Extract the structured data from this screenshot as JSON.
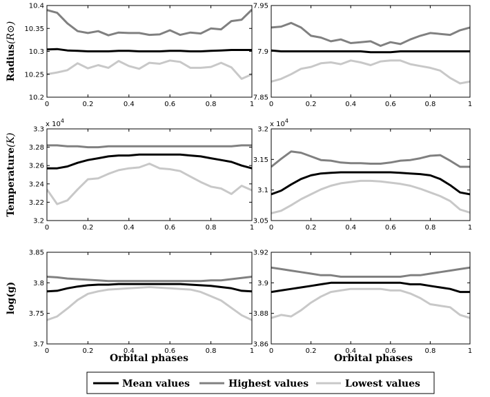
{
  "figure": {
    "xlabel": "Orbital phases",
    "legend": [
      {
        "key": "mean",
        "label": "Mean values",
        "color": "#000000"
      },
      {
        "key": "high",
        "label": "Highest values",
        "color": "#808080"
      },
      {
        "key": "low",
        "label": "Lowest values",
        "color": "#c8c8c8"
      }
    ]
  },
  "chart_data": [
    {
      "type": "line",
      "ylabel_main": "Radius",
      "ylabel_unit": "(R⊙)",
      "xlim": [
        0,
        1
      ],
      "ylim": [
        10.2,
        10.4
      ],
      "xticks": [
        "0",
        "0.2",
        "0.4",
        "0.6",
        "0.8",
        "1"
      ],
      "yticks": [
        "10.2",
        "10.25",
        "10.3",
        "10.35",
        "10.4"
      ],
      "x": [
        0,
        0.05,
        0.1,
        0.15,
        0.2,
        0.25,
        0.3,
        0.35,
        0.4,
        0.45,
        0.5,
        0.55,
        0.6,
        0.65,
        0.7,
        0.75,
        0.8,
        0.85,
        0.9,
        0.95,
        1
      ],
      "series": [
        {
          "name": "Mean values",
          "values": [
            10.304,
            10.305,
            10.302,
            10.301,
            10.3,
            10.3,
            10.3,
            10.301,
            10.301,
            10.3,
            10.3,
            10.3,
            10.301,
            10.301,
            10.3,
            10.3,
            10.301,
            10.302,
            10.303,
            10.303,
            10.303
          ]
        },
        {
          "name": "Highest values",
          "values": [
            10.39,
            10.384,
            10.361,
            10.344,
            10.34,
            10.344,
            10.335,
            10.341,
            10.34,
            10.34,
            10.336,
            10.337,
            10.346,
            10.336,
            10.341,
            10.339,
            10.35,
            10.348,
            10.366,
            10.369,
            10.391
          ]
        },
        {
          "name": "Lowest values",
          "values": [
            10.25,
            10.254,
            10.259,
            10.274,
            10.263,
            10.27,
            10.264,
            10.279,
            10.268,
            10.262,
            10.275,
            10.273,
            10.28,
            10.277,
            10.264,
            10.264,
            10.266,
            10.275,
            10.265,
            10.24,
            10.25
          ]
        }
      ]
    },
    {
      "type": "line",
      "ylabel_main": "",
      "ylabel_unit": "",
      "xlim": [
        0,
        1
      ],
      "ylim": [
        7.85,
        7.95
      ],
      "xticks": [
        "0",
        "0.2",
        "0.4",
        "0.6",
        "0.8",
        "1"
      ],
      "yticks": [
        "7.85",
        "7.9",
        "7.95"
      ],
      "x": [
        0,
        0.05,
        0.1,
        0.15,
        0.2,
        0.25,
        0.3,
        0.35,
        0.4,
        0.45,
        0.5,
        0.55,
        0.6,
        0.65,
        0.7,
        0.75,
        0.8,
        0.85,
        0.9,
        0.95,
        1
      ],
      "series": [
        {
          "name": "Mean values",
          "values": [
            7.901,
            7.9,
            7.9,
            7.9,
            7.9,
            7.9,
            7.9,
            7.9,
            7.9,
            7.9,
            7.899,
            7.899,
            7.899,
            7.9,
            7.9,
            7.9,
            7.9,
            7.9,
            7.9,
            7.9,
            7.9
          ]
        },
        {
          "name": "Highest values",
          "values": [
            7.926,
            7.927,
            7.931,
            7.926,
            7.917,
            7.915,
            7.911,
            7.913,
            7.909,
            7.91,
            7.911,
            7.906,
            7.91,
            7.908,
            7.913,
            7.917,
            7.92,
            7.919,
            7.918,
            7.923,
            7.926
          ]
        },
        {
          "name": "Lowest values",
          "values": [
            7.867,
            7.87,
            7.875,
            7.881,
            7.883,
            7.887,
            7.888,
            7.886,
            7.89,
            7.888,
            7.885,
            7.889,
            7.89,
            7.89,
            7.886,
            7.884,
            7.882,
            7.879,
            7.871,
            7.865,
            7.867
          ]
        }
      ]
    },
    {
      "type": "line",
      "ylabel_main": "Temperature",
      "ylabel_unit": "(K)",
      "multiplier": "x 10",
      "multiplier_exp": "4",
      "xlim": [
        0,
        1
      ],
      "ylim": [
        3.2,
        3.3
      ],
      "xticks": [
        "0",
        "0.2",
        "0.4",
        "0.6",
        "0.8",
        "1"
      ],
      "yticks": [
        "3.2",
        "3.22",
        "3.24",
        "3.26",
        "3.28",
        "3.3"
      ],
      "x": [
        0,
        0.05,
        0.1,
        0.15,
        0.2,
        0.25,
        0.3,
        0.35,
        0.4,
        0.45,
        0.5,
        0.55,
        0.6,
        0.65,
        0.7,
        0.75,
        0.8,
        0.85,
        0.9,
        0.95,
        1
      ],
      "series": [
        {
          "name": "Mean values",
          "values": [
            3.257,
            3.257,
            3.259,
            3.263,
            3.266,
            3.268,
            3.27,
            3.271,
            3.271,
            3.272,
            3.272,
            3.272,
            3.272,
            3.272,
            3.271,
            3.27,
            3.268,
            3.266,
            3.264,
            3.26,
            3.257
          ]
        },
        {
          "name": "Highest values",
          "values": [
            3.282,
            3.282,
            3.281,
            3.281,
            3.28,
            3.28,
            3.281,
            3.281,
            3.281,
            3.281,
            3.281,
            3.281,
            3.281,
            3.281,
            3.281,
            3.281,
            3.281,
            3.281,
            3.281,
            3.282,
            3.282
          ]
        },
        {
          "name": "Lowest values",
          "values": [
            3.234,
            3.218,
            3.222,
            3.234,
            3.245,
            3.246,
            3.251,
            3.255,
            3.257,
            3.258,
            3.262,
            3.257,
            3.256,
            3.254,
            3.248,
            3.242,
            3.237,
            3.235,
            3.229,
            3.238,
            3.233
          ]
        }
      ]
    },
    {
      "type": "line",
      "ylabel_main": "",
      "ylabel_unit": "",
      "multiplier": "x 10",
      "multiplier_exp": "4",
      "xlim": [
        0,
        1
      ],
      "ylim": [
        3.05,
        3.2
      ],
      "xticks": [
        "0",
        "0.2",
        "0.4",
        "0.6",
        "0.8",
        "1"
      ],
      "yticks": [
        "3.05",
        "3.1",
        "3.15",
        "3.2"
      ],
      "x": [
        0,
        0.05,
        0.1,
        0.15,
        0.2,
        0.25,
        0.3,
        0.35,
        0.4,
        0.45,
        0.5,
        0.55,
        0.6,
        0.65,
        0.7,
        0.75,
        0.8,
        0.85,
        0.9,
        0.95,
        1
      ],
      "series": [
        {
          "name": "Mean values",
          "values": [
            3.093,
            3.099,
            3.109,
            3.118,
            3.124,
            3.127,
            3.128,
            3.129,
            3.129,
            3.129,
            3.129,
            3.129,
            3.129,
            3.128,
            3.127,
            3.126,
            3.124,
            3.118,
            3.108,
            3.096,
            3.093
          ]
        },
        {
          "name": "Highest values",
          "values": [
            3.138,
            3.151,
            3.163,
            3.161,
            3.155,
            3.149,
            3.148,
            3.145,
            3.144,
            3.144,
            3.143,
            3.143,
            3.145,
            3.148,
            3.149,
            3.152,
            3.156,
            3.157,
            3.148,
            3.138,
            3.138
          ]
        },
        {
          "name": "Lowest values",
          "values": [
            3.062,
            3.066,
            3.075,
            3.085,
            3.093,
            3.101,
            3.107,
            3.111,
            3.113,
            3.115,
            3.115,
            3.114,
            3.112,
            3.11,
            3.107,
            3.102,
            3.096,
            3.09,
            3.082,
            3.068,
            3.063
          ]
        }
      ]
    },
    {
      "type": "line",
      "ylabel_main": "log(g)",
      "ylabel_unit": "",
      "xlim": [
        0,
        1
      ],
      "ylim": [
        3.7,
        3.85
      ],
      "xticks": [
        "0",
        "0.2",
        "0.4",
        "0.6",
        "0.8",
        "1"
      ],
      "yticks": [
        "3.7",
        "3.75",
        "3.8",
        "3.85"
      ],
      "x": [
        0,
        0.05,
        0.1,
        0.15,
        0.2,
        0.25,
        0.3,
        0.35,
        0.4,
        0.45,
        0.5,
        0.55,
        0.6,
        0.65,
        0.7,
        0.75,
        0.8,
        0.85,
        0.9,
        0.95,
        1
      ],
      "series": [
        {
          "name": "Mean values",
          "values": [
            3.786,
            3.787,
            3.791,
            3.794,
            3.796,
            3.797,
            3.797,
            3.798,
            3.798,
            3.798,
            3.798,
            3.798,
            3.798,
            3.798,
            3.797,
            3.796,
            3.795,
            3.793,
            3.791,
            3.787,
            3.786
          ]
        },
        {
          "name": "Highest values",
          "values": [
            3.81,
            3.809,
            3.807,
            3.806,
            3.805,
            3.804,
            3.803,
            3.803,
            3.803,
            3.803,
            3.803,
            3.803,
            3.803,
            3.803,
            3.803,
            3.803,
            3.804,
            3.804,
            3.806,
            3.808,
            3.81
          ]
        },
        {
          "name": "Lowest values",
          "values": [
            3.739,
            3.745,
            3.758,
            3.772,
            3.782,
            3.786,
            3.789,
            3.79,
            3.791,
            3.792,
            3.793,
            3.792,
            3.791,
            3.79,
            3.789,
            3.785,
            3.778,
            3.771,
            3.759,
            3.747,
            3.739
          ]
        }
      ]
    },
    {
      "type": "line",
      "ylabel_main": "",
      "ylabel_unit": "",
      "xlim": [
        0,
        1
      ],
      "ylim": [
        3.86,
        3.92
      ],
      "xticks": [
        "0",
        "0.2",
        "0.4",
        "0.6",
        "0.8",
        "1"
      ],
      "yticks": [
        "3.86",
        "3.88",
        "3.9",
        "3.92"
      ],
      "x": [
        0,
        0.05,
        0.1,
        0.15,
        0.2,
        0.25,
        0.3,
        0.35,
        0.4,
        0.45,
        0.5,
        0.55,
        0.6,
        0.65,
        0.7,
        0.75,
        0.8,
        0.85,
        0.9,
        0.95,
        1
      ],
      "series": [
        {
          "name": "Mean values",
          "values": [
            3.894,
            3.895,
            3.896,
            3.897,
            3.898,
            3.899,
            3.9,
            3.9,
            3.9,
            3.9,
            3.9,
            3.9,
            3.9,
            3.9,
            3.899,
            3.899,
            3.898,
            3.897,
            3.896,
            3.894,
            3.894
          ]
        },
        {
          "name": "Highest values",
          "values": [
            3.91,
            3.909,
            3.908,
            3.907,
            3.906,
            3.905,
            3.905,
            3.904,
            3.904,
            3.904,
            3.904,
            3.904,
            3.904,
            3.904,
            3.905,
            3.905,
            3.906,
            3.907,
            3.908,
            3.909,
            3.91
          ]
        },
        {
          "name": "Lowest values",
          "values": [
            3.877,
            3.879,
            3.878,
            3.882,
            3.887,
            3.891,
            3.894,
            3.895,
            3.896,
            3.896,
            3.896,
            3.896,
            3.895,
            3.895,
            3.893,
            3.89,
            3.886,
            3.885,
            3.884,
            3.879,
            3.877
          ]
        }
      ]
    }
  ]
}
